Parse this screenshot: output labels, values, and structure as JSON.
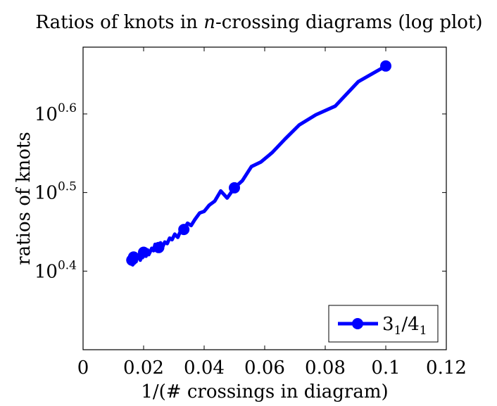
{
  "chart_data": {
    "type": "line",
    "title": "Ratios of knots in n-crossing diagrams (log plot)",
    "title_parts": {
      "before": "Ratios of knots in ",
      "var": "n",
      "after": "-crossing diagrams (log plot)"
    },
    "xlabel": "1/(# crossings in diagram)",
    "ylabel": "ratios of knots",
    "xlim": [
      0,
      0.12
    ],
    "ylim_log10": [
      0.3,
      0.685
    ],
    "y_scale": "log10",
    "x_ticks": [
      {
        "value": 0,
        "label": "0"
      },
      {
        "value": 0.02,
        "label": "0.02"
      },
      {
        "value": 0.04,
        "label": "0.04"
      },
      {
        "value": 0.06,
        "label": "0.06"
      },
      {
        "value": 0.08,
        "label": "0.08"
      },
      {
        "value": 0.1,
        "label": "0.1"
      },
      {
        "value": 0.12,
        "label": "0.12"
      }
    ],
    "y_ticks": [
      {
        "value": 0.4,
        "base": "10",
        "exp": "0.4"
      },
      {
        "value": 0.5,
        "base": "10",
        "exp": "0.5"
      },
      {
        "value": 0.6,
        "base": "10",
        "exp": "0.6"
      }
    ],
    "grid": false,
    "legend_position": "bottom-right",
    "series": [
      {
        "name": "3_1/4_1",
        "legend": {
          "base": "3",
          "sub": "1",
          "mid": "/4",
          "sub2": "1"
        },
        "color": "#0000ff",
        "x": [
          0.1,
          0.0909,
          0.0833,
          0.0769,
          0.0714,
          0.0667,
          0.0625,
          0.0588,
          0.0556,
          0.0526,
          0.05,
          0.0476,
          0.0455,
          0.0435,
          0.0417,
          0.04,
          0.0385,
          0.037,
          0.0357,
          0.0345,
          0.0333,
          0.0323,
          0.0313,
          0.0303,
          0.0294,
          0.0286,
          0.0278,
          0.027,
          0.0263,
          0.0256,
          0.025,
          0.0244,
          0.0238,
          0.0233,
          0.0227,
          0.0222,
          0.0217,
          0.0213,
          0.0208,
          0.0204,
          0.02,
          0.0196,
          0.0192,
          0.0189,
          0.0185,
          0.0182,
          0.0179,
          0.0175,
          0.0172,
          0.0169,
          0.0167,
          0.0164,
          0.0161
        ],
        "y_log10": [
          0.661,
          0.641,
          0.61,
          0.599,
          0.586,
          0.568,
          0.551,
          0.539,
          0.533,
          0.515,
          0.506,
          0.493,
          0.502,
          0.489,
          0.484,
          0.476,
          0.474,
          0.466,
          0.458,
          0.461,
          0.453,
          0.452,
          0.443,
          0.447,
          0.44,
          0.442,
          0.435,
          0.437,
          0.431,
          0.436,
          0.43,
          0.426,
          0.434,
          0.426,
          0.429,
          0.425,
          0.421,
          0.427,
          0.419,
          0.426,
          0.424,
          0.417,
          0.422,
          0.414,
          0.421,
          0.417,
          0.419,
          0.412,
          0.418,
          0.411,
          0.418,
          0.408,
          0.414
        ],
        "marker_points": [
          {
            "x": 0.1,
            "y_log10": 0.661
          },
          {
            "x": 0.05,
            "y_log10": 0.506
          },
          {
            "x": 0.0333,
            "y_log10": 0.453
          },
          {
            "x": 0.025,
            "y_log10": 0.43
          },
          {
            "x": 0.02,
            "y_log10": 0.424
          },
          {
            "x": 0.0167,
            "y_log10": 0.418
          },
          {
            "x": 0.0161,
            "y_log10": 0.414
          }
        ]
      }
    ]
  }
}
